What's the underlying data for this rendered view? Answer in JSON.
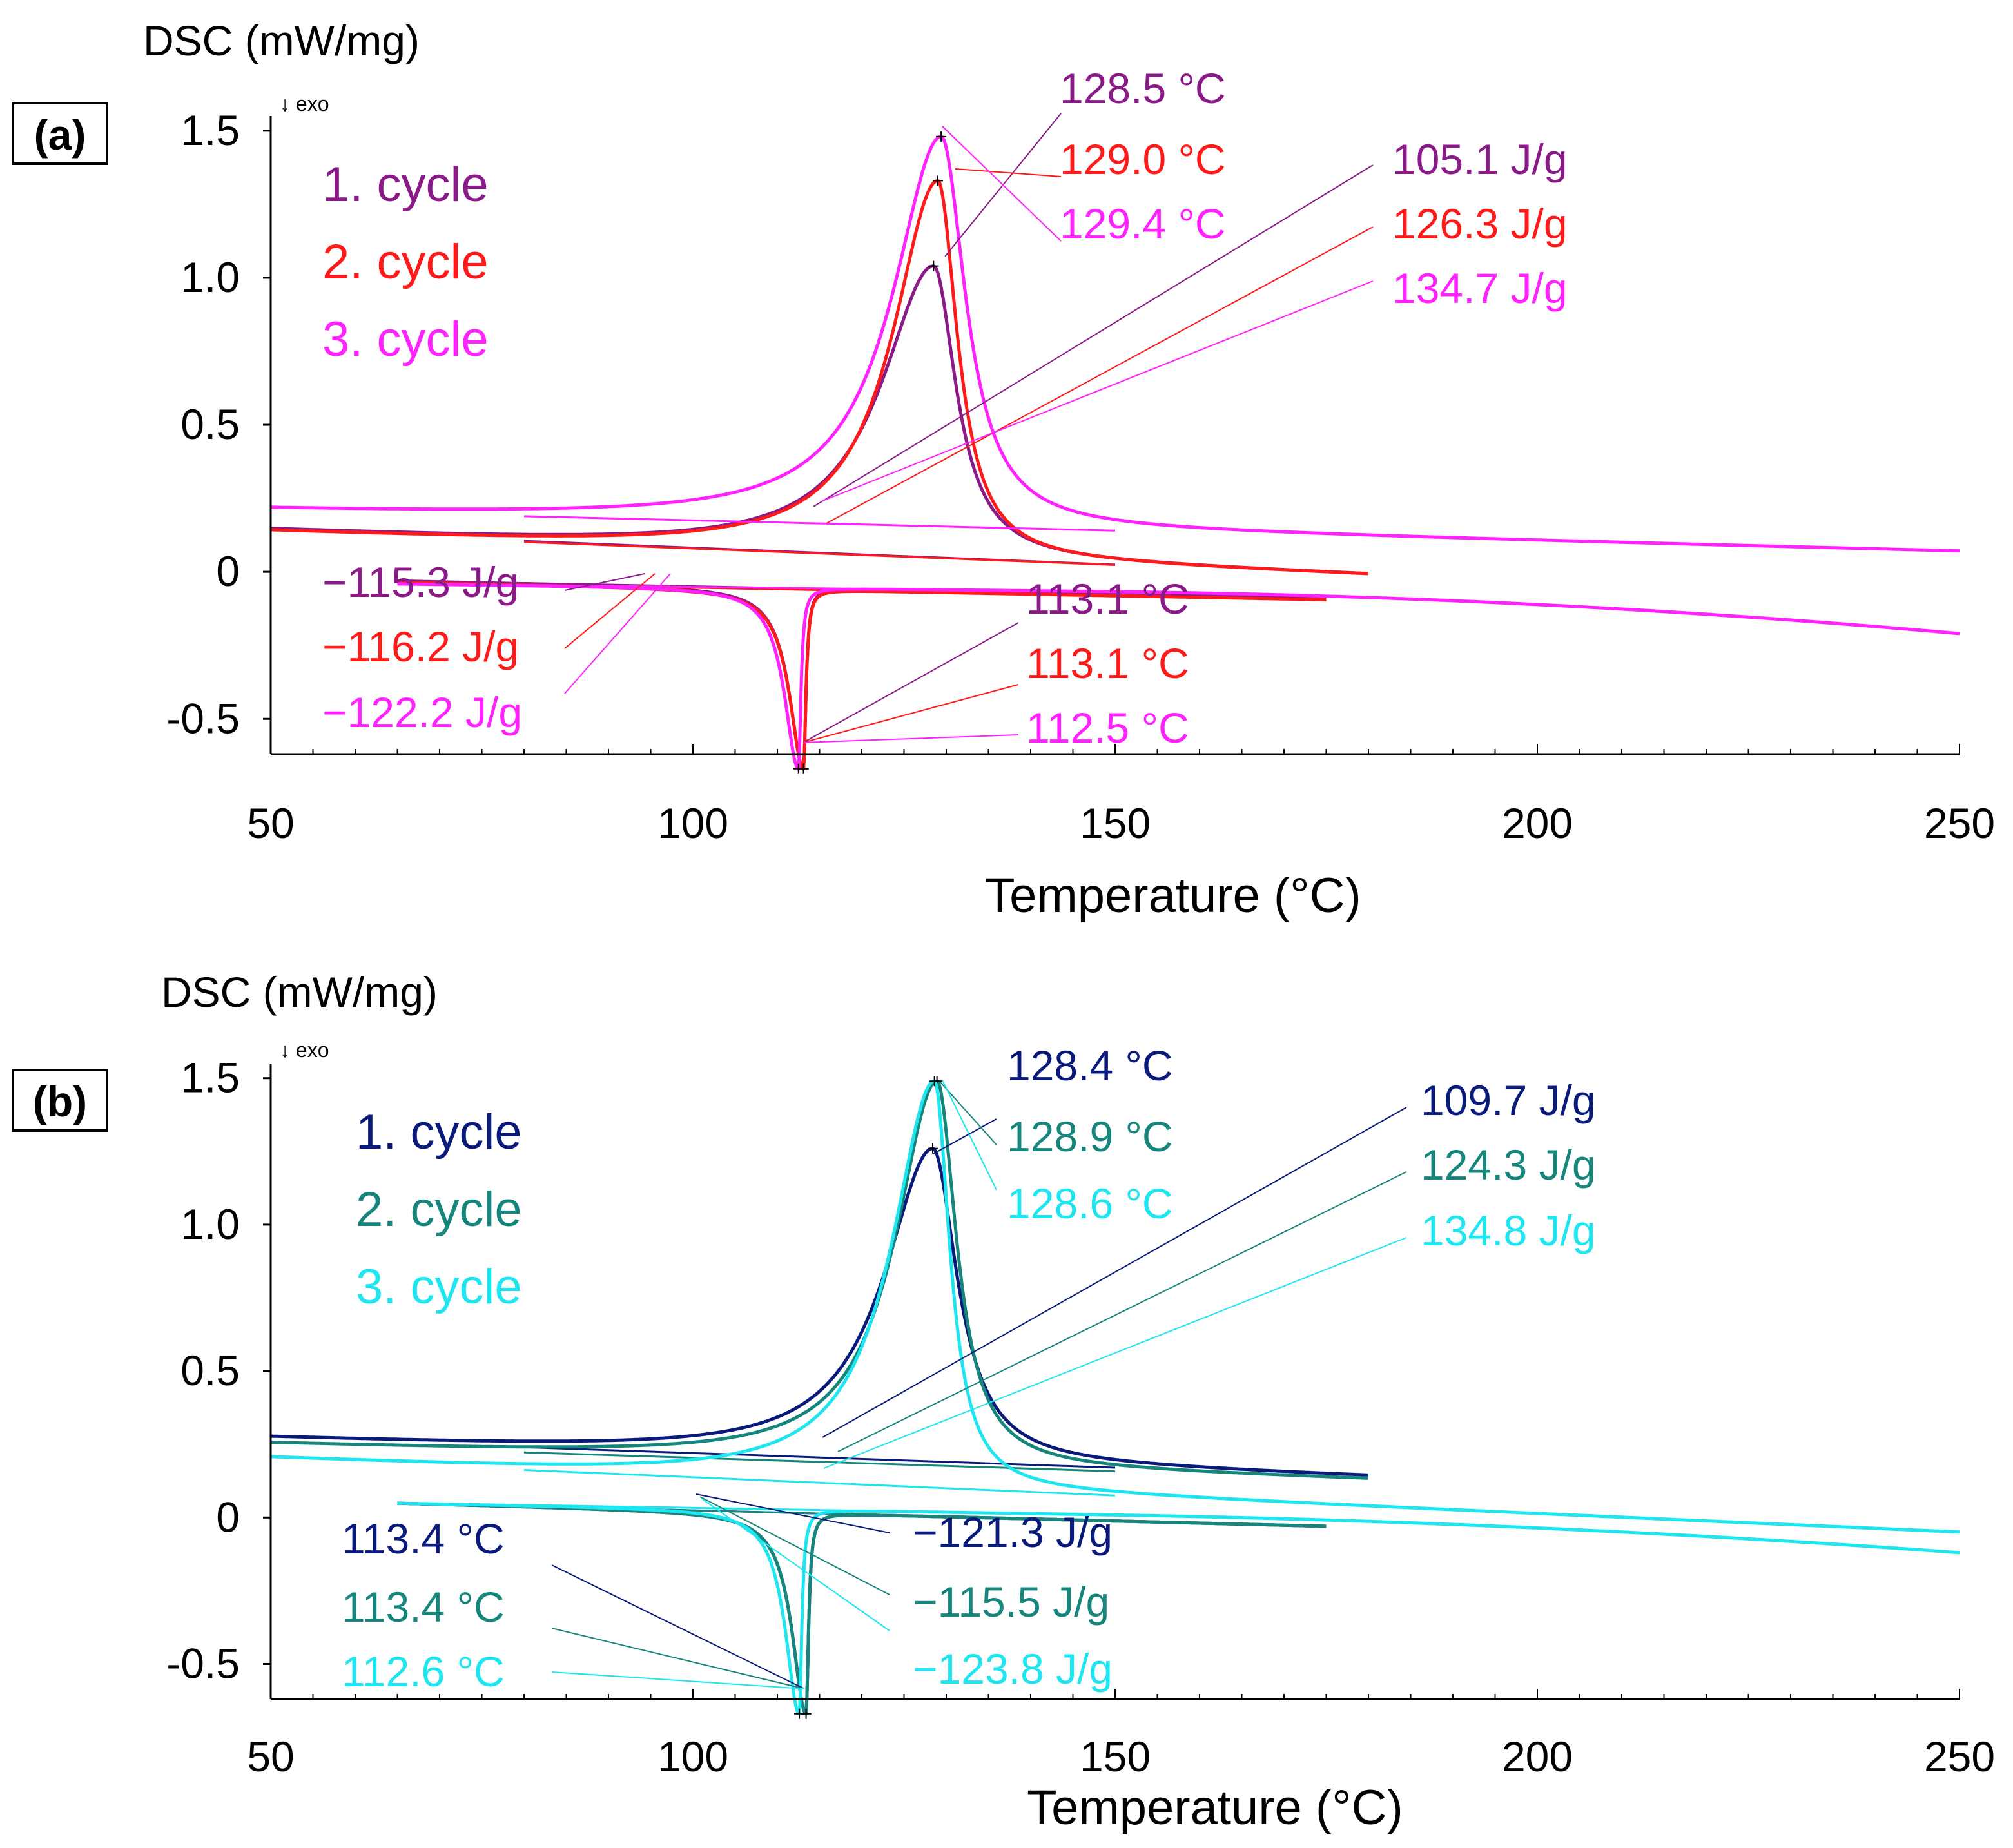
{
  "figure": {
    "x_domain": [
      50,
      250
    ],
    "y_domain": [
      -0.62,
      1.55
    ]
  },
  "chart_data": [
    {
      "type": "line",
      "panel_label": "(a)",
      "ylabel": "DSC (mW/mg)",
      "exo_marker": "↓ exo",
      "xlabel": "Temperature (°C)",
      "xlim": [
        50,
        250
      ],
      "ylim": [
        -0.62,
        1.55
      ],
      "x_ticks": [
        50,
        100,
        150,
        200,
        250
      ],
      "y_ticks": [
        "1.5",
        "1.0",
        "0.5",
        "0",
        "-0.5"
      ],
      "y_tick_values": [
        1.5,
        1.0,
        0.5,
        0.0,
        -0.5
      ],
      "colors": [
        "#8b1a89",
        "#ff1a1a",
        "#ff22ff"
      ],
      "legend": [
        "1. cycle",
        "2. cycle",
        "3. cycle"
      ],
      "series": [
        {
          "name": "1. cycle",
          "color": "#8b1a89",
          "heating": {
            "start": 50,
            "end": 180,
            "base_start": 0.14,
            "base_end": -0.01,
            "peak_x": 128.5,
            "peak_y": 1.04,
            "width_left": 7.5,
            "width_right": 3.2,
            "tail_drop": 0.0
          },
          "cooling": {
            "start": 65,
            "end": 175,
            "base_start": -0.03,
            "base_end": -0.09,
            "peak_x": 113.1,
            "peak_y": -0.67,
            "width_left": 2.0,
            "width_right": 0.35,
            "tail_drop": 0.0
          }
        },
        {
          "name": "2. cycle",
          "color": "#ff1a1a",
          "heating": {
            "start": 50,
            "end": 180,
            "base_start": 0.135,
            "base_end": -0.01,
            "peak_x": 129.0,
            "peak_y": 1.33,
            "width_left": 6.5,
            "width_right": 2.8,
            "tail_drop": 0.0
          },
          "cooling": {
            "start": 65,
            "end": 175,
            "base_start": -0.035,
            "base_end": -0.095,
            "peak_x": 113.1,
            "peak_y": -0.67,
            "width_left": 2.0,
            "width_right": 0.35,
            "tail_drop": 0.0
          }
        },
        {
          "name": "3. cycle",
          "color": "#ff22ff",
          "heating": {
            "start": 50,
            "end": 250,
            "base_start": 0.21,
            "base_end": 0.07,
            "peak_x": 129.4,
            "peak_y": 1.48,
            "width_left": 7.0,
            "width_right": 3.5,
            "tail_drop": 0.0
          },
          "cooling": {
            "start": 65,
            "end": 250,
            "base_start": -0.04,
            "base_end": -0.1,
            "peak_x": 112.5,
            "peak_y": -0.67,
            "width_left": 2.0,
            "width_right": 0.35,
            "tail_drop": 0.11
          }
        }
      ],
      "peak_temperature_labels": [
        "128.5 °C",
        "129.0 °C",
        "129.4 °C"
      ],
      "enthalpy_labels": [
        "105.1 J/g",
        "126.3 J/g",
        "134.7 J/g"
      ],
      "cooling_enthalpy_labels": [
        "−115.3 J/g",
        "−116.2 J/g",
        "−122.2 J/g"
      ],
      "cooling_peak_labels": [
        "113.1 °C",
        "113.1 °C",
        "112.5 °C"
      ]
    },
    {
      "type": "line",
      "panel_label": "(b)",
      "ylabel": "DSC (mW/mg)",
      "exo_marker": "↓ exo",
      "xlabel": "Temperature (°C)",
      "xlim": [
        50,
        250
      ],
      "ylim": [
        -0.62,
        1.55
      ],
      "x_ticks": [
        50,
        100,
        150,
        200,
        250
      ],
      "y_ticks": [
        "1.5",
        "1.0",
        "0.5",
        "0",
        "-0.5"
      ],
      "y_tick_values": [
        1.5,
        1.0,
        0.5,
        0.0,
        -0.5
      ],
      "colors": [
        "#0a1a7a",
        "#16867c",
        "#1ee6f0"
      ],
      "legend": [
        "1. cycle",
        "2. cycle",
        "3. cycle"
      ],
      "series": [
        {
          "name": "1. cycle",
          "color": "#0a1a7a",
          "heating": {
            "start": 50,
            "end": 180,
            "base_start": 0.27,
            "base_end": 0.14,
            "peak_x": 128.4,
            "peak_y": 1.26,
            "width_left": 7.0,
            "width_right": 3.5,
            "tail_drop": 0.0
          },
          "cooling": {
            "start": 65,
            "end": 175,
            "base_start": 0.05,
            "base_end": -0.03,
            "peak_x": 113.4,
            "peak_y": -0.67,
            "width_left": 2.0,
            "width_right": 0.35,
            "tail_drop": 0.0
          }
        },
        {
          "name": "2. cycle",
          "color": "#16867c",
          "heating": {
            "start": 50,
            "end": 180,
            "base_start": 0.25,
            "base_end": 0.13,
            "peak_x": 128.9,
            "peak_y": 1.49,
            "width_left": 6.0,
            "width_right": 2.8,
            "tail_drop": 0.0
          },
          "cooling": {
            "start": 65,
            "end": 175,
            "base_start": 0.05,
            "base_end": -0.03,
            "peak_x": 113.4,
            "peak_y": -0.67,
            "width_left": 2.0,
            "width_right": 0.35,
            "tail_drop": 0.0
          }
        },
        {
          "name": "3. cycle",
          "color": "#1ee6f0",
          "heating": {
            "start": 50,
            "end": 250,
            "base_start": 0.2,
            "base_end": -0.05,
            "peak_x": 128.6,
            "peak_y": 1.49,
            "width_left": 6.2,
            "width_right": 2.2,
            "tail_drop": 0.0
          },
          "cooling": {
            "start": 65,
            "end": 250,
            "base_start": 0.05,
            "base_end": -0.04,
            "peak_x": 112.6,
            "peak_y": -0.67,
            "width_left": 2.0,
            "width_right": 0.35,
            "tail_drop": 0.08
          }
        }
      ],
      "peak_temperature_labels": [
        "128.4 °C",
        "128.9 °C",
        "128.6 °C"
      ],
      "enthalpy_labels": [
        "109.7 J/g",
        "124.3 J/g",
        "134.8 J/g"
      ],
      "cooling_enthalpy_labels": [
        "−121.3 J/g",
        "−115.5 J/g",
        "−123.8 J/g"
      ],
      "cooling_peak_labels": [
        "113.4 °C",
        "113.4 °C",
        "112.6 °C"
      ]
    }
  ]
}
